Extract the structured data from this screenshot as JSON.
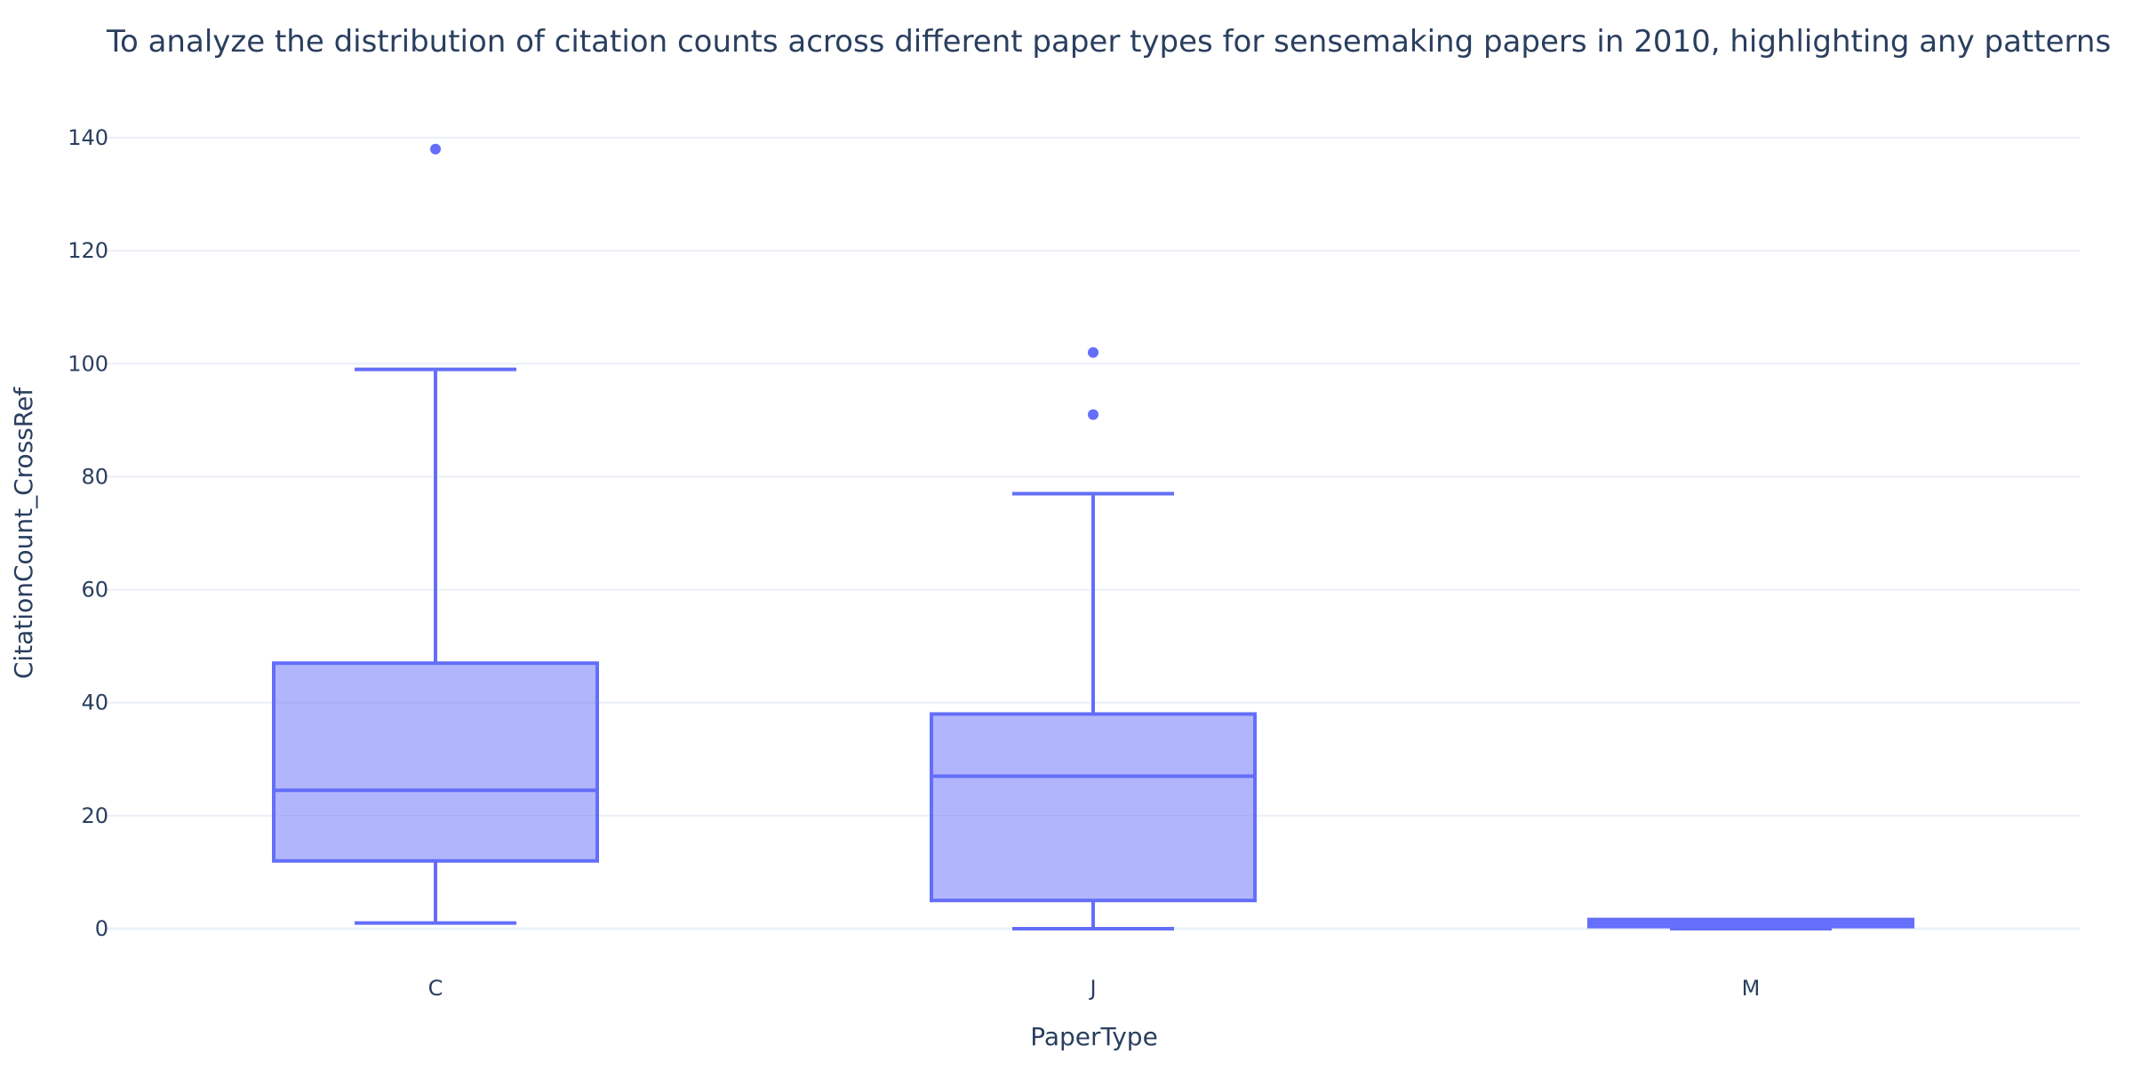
{
  "chart_data": {
    "type": "box",
    "title": "To analyze the distribution of citation counts across different paper types for sensemaking papers in 2010, highlighting any patterns",
    "xlabel": "PaperType",
    "ylabel": "CitationCount_CrossRef",
    "categories": [
      "C",
      "J",
      "M"
    ],
    "ylim": [
      -5,
      146
    ],
    "yticks": [
      0,
      20,
      40,
      60,
      80,
      100,
      120,
      140
    ],
    "ytick_labels": [
      "0",
      "20",
      "40",
      "60",
      "80",
      "100",
      "120",
      "140"
    ],
    "grid": true,
    "legend": "none",
    "colors": {
      "line": "#636efa",
      "fill": "#636efa",
      "fill_opacity": 0.5,
      "grid": "#ebf0f8",
      "text": "#2a3f5f"
    },
    "boxes": [
      {
        "category": "C",
        "lowerfence": 1,
        "q1": 12,
        "median": 24.5,
        "q3": 47,
        "upperfence": 99,
        "outliers": [
          138
        ]
      },
      {
        "category": "J",
        "lowerfence": 0,
        "q1": 5,
        "median": 27,
        "q3": 38,
        "upperfence": 77,
        "outliers": [
          91,
          102
        ]
      },
      {
        "category": "M",
        "lowerfence": 0,
        "q1": 0,
        "median": 1,
        "q3": 1,
        "upperfence": 1,
        "outliers": []
      }
    ]
  }
}
